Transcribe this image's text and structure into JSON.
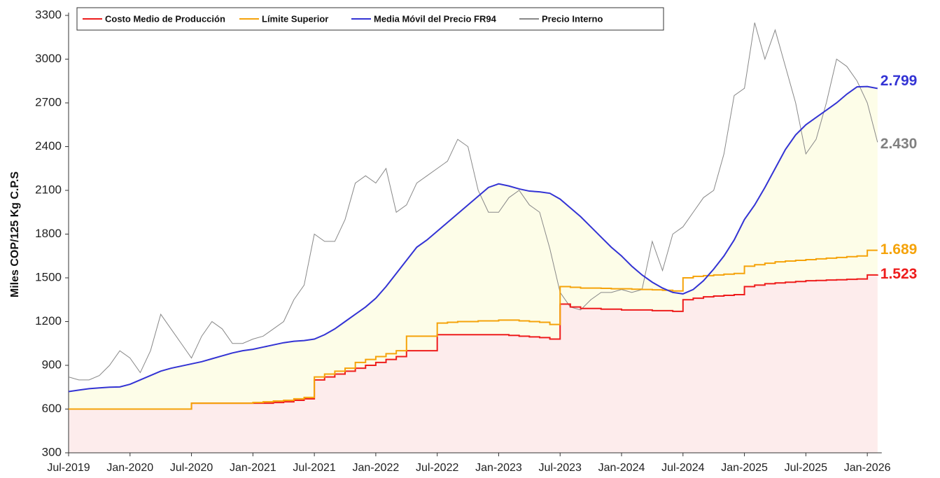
{
  "chart_data": {
    "type": "line",
    "y_label": "Miles COP/125 Kg C.P.S",
    "x": [
      "Jul-2019",
      "Aug-2019",
      "Sep-2019",
      "Oct-2019",
      "Nov-2019",
      "Dec-2019",
      "Jan-2020",
      "Feb-2020",
      "Mar-2020",
      "Apr-2020",
      "May-2020",
      "Jun-2020",
      "Jul-2020",
      "Aug-2020",
      "Sep-2020",
      "Oct-2020",
      "Nov-2020",
      "Dec-2020",
      "Jan-2021",
      "Feb-2021",
      "Mar-2021",
      "Apr-2021",
      "May-2021",
      "Jun-2021",
      "Jul-2021",
      "Aug-2021",
      "Sep-2021",
      "Oct-2021",
      "Nov-2021",
      "Dec-2021",
      "Jan-2022",
      "Feb-2022",
      "Mar-2022",
      "Apr-2022",
      "May-2022",
      "Jun-2022",
      "Jul-2022",
      "Aug-2022",
      "Sep-2022",
      "Oct-2022",
      "Nov-2022",
      "Dec-2022",
      "Jan-2023",
      "Feb-2023",
      "Mar-2023",
      "Apr-2023",
      "May-2023",
      "Jun-2023",
      "Jul-2023",
      "Aug-2023",
      "Sep-2023",
      "Oct-2023",
      "Nov-2023",
      "Dec-2023",
      "Jan-2024",
      "Feb-2024",
      "Mar-2024",
      "Apr-2024",
      "May-2024",
      "Jun-2024",
      "Jul-2024",
      "Aug-2024",
      "Sep-2024",
      "Oct-2024",
      "Nov-2024",
      "Dec-2024",
      "Jan-2025",
      "Feb-2025",
      "Mar-2025",
      "Apr-2025",
      "May-2025",
      "Jun-2025",
      "Jul-2025",
      "Aug-2025",
      "Sep-2025",
      "Oct-2025",
      "Nov-2025",
      "Dec-2025",
      "Jan-2026",
      "Feb-2026"
    ],
    "xticks": [
      "Jul-2019",
      "Jan-2020",
      "Jul-2020",
      "Jan-2021",
      "Jul-2021",
      "Jan-2022",
      "Jul-2022",
      "Jan-2023",
      "Jul-2023",
      "Jan-2024",
      "Jul-2024",
      "Jan-2025",
      "Jul-2025",
      "Jan-2026"
    ],
    "ylim": [
      300,
      3300
    ],
    "yticks": [
      300,
      600,
      900,
      1200,
      1500,
      1800,
      2100,
      2400,
      2700,
      3000,
      3300
    ],
    "series": [
      {
        "name": "Costo Medio de Producción",
        "color": "#ee1c1c",
        "step": true,
        "fill": "#fdecec",
        "values": [
          600,
          600,
          600,
          600,
          600,
          600,
          600,
          600,
          600,
          600,
          600,
          600,
          640,
          640,
          640,
          640,
          640,
          640,
          640,
          640,
          645,
          650,
          660,
          670,
          800,
          820,
          840,
          860,
          880,
          900,
          920,
          940,
          960,
          1000,
          1000,
          1000,
          1110,
          1110,
          1110,
          1110,
          1110,
          1110,
          1110,
          1105,
          1100,
          1095,
          1090,
          1080,
          1320,
          1300,
          1290,
          1290,
          1285,
          1285,
          1280,
          1280,
          1280,
          1275,
          1275,
          1270,
          1350,
          1360,
          1370,
          1375,
          1380,
          1385,
          1440,
          1450,
          1460,
          1465,
          1470,
          1475,
          1480,
          1482,
          1485,
          1487,
          1490,
          1492,
          1520,
          1523
        ],
        "value_labels": [
          null,
          null,
          null,
          null,
          null,
          null,
          null,
          null,
          null,
          null,
          null,
          null,
          null,
          null,
          null,
          null,
          null,
          null,
          null,
          null,
          null,
          null,
          null,
          null,
          null,
          null,
          null,
          null,
          null,
          null,
          null,
          null,
          null,
          null,
          null,
          null,
          null,
          null,
          null,
          null,
          null,
          null,
          null,
          null,
          null,
          null,
          null,
          null,
          null,
          null,
          null,
          null,
          null,
          null,
          null,
          null,
          null,
          null,
          null,
          null,
          null,
          null,
          null,
          null,
          null,
          null,
          null,
          null,
          null,
          null,
          null,
          null,
          null,
          null,
          null,
          null,
          null,
          null,
          null,
          "1.523"
        ]
      },
      {
        "name": "Límite Superior",
        "color": "#f5a30a",
        "step": true,
        "values": [
          600,
          600,
          600,
          600,
          600,
          600,
          600,
          600,
          600,
          600,
          600,
          600,
          640,
          640,
          640,
          640,
          640,
          640,
          645,
          650,
          655,
          660,
          670,
          680,
          820,
          840,
          860,
          880,
          920,
          940,
          960,
          980,
          1000,
          1100,
          1100,
          1100,
          1190,
          1195,
          1200,
          1200,
          1205,
          1205,
          1210,
          1210,
          1205,
          1200,
          1195,
          1180,
          1440,
          1435,
          1430,
          1430,
          1428,
          1425,
          1425,
          1422,
          1420,
          1418,
          1415,
          1410,
          1500,
          1510,
          1515,
          1520,
          1525,
          1530,
          1580,
          1590,
          1600,
          1610,
          1615,
          1620,
          1625,
          1630,
          1635,
          1640,
          1645,
          1650,
          1689,
          1689
        ],
        "value_labels": [
          null,
          null,
          null,
          null,
          null,
          null,
          null,
          null,
          null,
          null,
          null,
          null,
          null,
          null,
          null,
          null,
          null,
          null,
          null,
          null,
          null,
          null,
          null,
          null,
          null,
          null,
          null,
          null,
          null,
          null,
          null,
          null,
          null,
          null,
          null,
          null,
          null,
          null,
          null,
          null,
          null,
          null,
          null,
          null,
          null,
          null,
          null,
          null,
          null,
          null,
          null,
          null,
          null,
          null,
          null,
          null,
          null,
          null,
          null,
          null,
          null,
          null,
          null,
          null,
          null,
          null,
          null,
          null,
          null,
          null,
          null,
          null,
          null,
          null,
          null,
          null,
          null,
          null,
          null,
          "1.689"
        ]
      },
      {
        "name": "Media Móvil del Precio FR94",
        "color": "#3333d4",
        "fill": "#fdfde8",
        "values": [
          720,
          730,
          740,
          745,
          750,
          752,
          770,
          800,
          830,
          860,
          880,
          895,
          910,
          925,
          945,
          965,
          985,
          1000,
          1010,
          1025,
          1040,
          1055,
          1065,
          1070,
          1080,
          1110,
          1150,
          1200,
          1250,
          1300,
          1360,
          1440,
          1530,
          1620,
          1710,
          1760,
          1820,
          1880,
          1940,
          2000,
          2060,
          2120,
          2145,
          2130,
          2110,
          2095,
          2090,
          2080,
          2040,
          1980,
          1920,
          1850,
          1780,
          1710,
          1650,
          1580,
          1520,
          1470,
          1430,
          1400,
          1390,
          1420,
          1480,
          1560,
          1650,
          1760,
          1900,
          2000,
          2120,
          2250,
          2380,
          2480,
          2550,
          2600,
          2650,
          2700,
          2760,
          2810,
          2812,
          2799
        ],
        "value_labels": [
          null,
          null,
          null,
          null,
          null,
          null,
          null,
          null,
          null,
          null,
          null,
          null,
          null,
          null,
          null,
          null,
          null,
          null,
          null,
          null,
          null,
          null,
          null,
          null,
          null,
          null,
          null,
          null,
          null,
          null,
          null,
          null,
          null,
          null,
          null,
          null,
          null,
          null,
          null,
          null,
          null,
          null,
          null,
          null,
          null,
          null,
          null,
          null,
          null,
          null,
          null,
          null,
          null,
          null,
          null,
          null,
          null,
          null,
          null,
          null,
          null,
          null,
          null,
          null,
          null,
          null,
          null,
          null,
          null,
          null,
          null,
          null,
          null,
          null,
          null,
          null,
          null,
          null,
          null,
          "2.799"
        ]
      },
      {
        "name": "Precio Interno",
        "color": "#888888",
        "values": [
          820,
          800,
          800,
          830,
          900,
          1000,
          950,
          850,
          1000,
          1250,
          1150,
          1050,
          950,
          1100,
          1200,
          1150,
          1050,
          1050,
          1080,
          1100,
          1150,
          1200,
          1350,
          1450,
          1800,
          1750,
          1750,
          1900,
          2150,
          2200,
          2150,
          2250,
          1950,
          2000,
          2150,
          2200,
          2250,
          2300,
          2450,
          2400,
          2100,
          1950,
          1950,
          2050,
          2100,
          2000,
          1950,
          1700,
          1400,
          1300,
          1280,
          1350,
          1400,
          1400,
          1420,
          1400,
          1420,
          1750,
          1550,
          1800,
          1850,
          1950,
          2050,
          2100,
          2350,
          2750,
          2800,
          3250,
          3000,
          3200,
          2950,
          2700,
          2350,
          2450,
          2700,
          3000,
          2950,
          2850,
          2700,
          2430
        ],
        "value_labels": [
          null,
          null,
          null,
          null,
          null,
          null,
          null,
          null,
          null,
          null,
          null,
          null,
          null,
          null,
          null,
          null,
          null,
          null,
          null,
          null,
          null,
          null,
          null,
          null,
          null,
          null,
          null,
          null,
          null,
          null,
          null,
          null,
          null,
          null,
          null,
          null,
          null,
          null,
          null,
          null,
          null,
          null,
          null,
          null,
          null,
          null,
          null,
          null,
          null,
          null,
          null,
          null,
          null,
          null,
          null,
          null,
          null,
          null,
          null,
          null,
          null,
          null,
          null,
          null,
          null,
          null,
          null,
          null,
          null,
          null,
          null,
          null,
          null,
          null,
          null,
          null,
          null,
          null,
          null,
          "2.430"
        ]
      }
    ]
  }
}
